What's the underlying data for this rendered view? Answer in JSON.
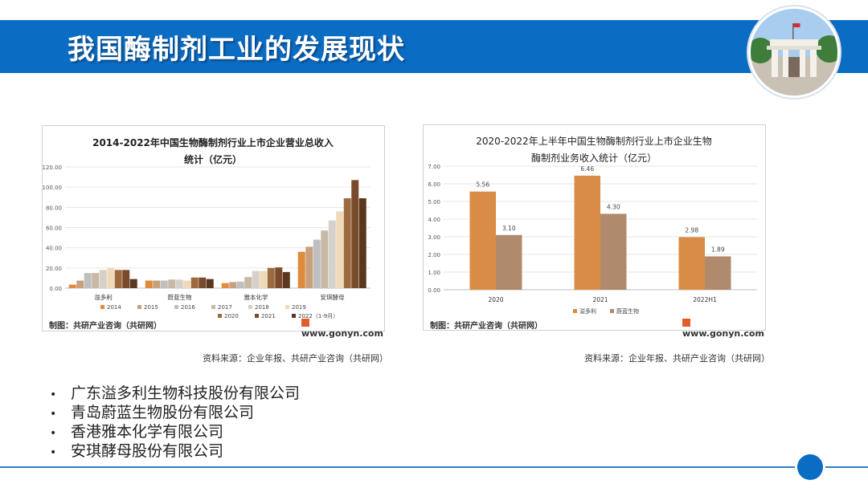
{
  "header": {
    "title": "我国酶制剂工业的发展现状"
  },
  "charts": {
    "left": {
      "footer_left": "制图：共研产业咨询（共研网）",
      "footer_right": "www.gonyn.com",
      "source": "资料来源：企业年报、共研产业咨询（共研网）"
    },
    "right": {
      "footer_left": "制图：共研产业咨询（共研网）",
      "footer_right": "www.gonyn.com",
      "source": "资料来源：企业年报、共研产业咨询（共研网）"
    }
  },
  "chart_data": [
    {
      "type": "bar",
      "title": [
        "2014-2022年中国生物酶制剂行业上市企业营业总收入",
        "统计（亿元）"
      ],
      "categories": [
        "溢多利",
        "蔚蓝生物",
        "雅本化学",
        "安琪酵母"
      ],
      "series": [
        {
          "name": "2014",
          "color": "#e08a3c",
          "values": [
            3.5,
            7.5,
            5.0,
            36
          ]
        },
        {
          "name": "2015",
          "color": "#c9a07c",
          "values": [
            7.5,
            7.5,
            6.0,
            41
          ]
        },
        {
          "name": "2016",
          "color": "#bfbfbf",
          "values": [
            15,
            7.5,
            6.5,
            48
          ]
        },
        {
          "name": "2017",
          "color": "#c8b8a6",
          "values": [
            15,
            8.5,
            11,
            57
          ]
        },
        {
          "name": "2018",
          "color": "#d6d1c8",
          "values": [
            18,
            8.5,
            17,
            67
          ]
        },
        {
          "name": "2019",
          "color": "#efd9b8",
          "values": [
            20,
            7.5,
            17,
            76
          ]
        },
        {
          "name": "2020",
          "color": "#9c6a3e",
          "values": [
            18,
            10.5,
            20,
            89
          ]
        },
        {
          "name": "2021",
          "color": "#7a4a2c",
          "values": [
            18,
            10.5,
            20.5,
            107
          ]
        },
        {
          "name": "2022（1-9月）",
          "color": "#5a3820",
          "values": [
            9,
            9,
            16,
            89
          ]
        }
      ],
      "yticks": [
        "0.00",
        "20.00",
        "40.00",
        "60.00",
        "80.00",
        "100.00",
        "120.00"
      ],
      "ylim": [
        0,
        120
      ]
    },
    {
      "type": "bar",
      "title": [
        "2020-2022年上半年中国生物酶制剂行业上市企业生物",
        "酶制剂业务收入统计（亿元）"
      ],
      "categories": [
        "2020",
        "2021",
        "2022H1"
      ],
      "series": [
        {
          "name": "溢多利",
          "color": "#d88c45",
          "values": [
            5.56,
            6.46,
            2.98
          ],
          "labels": [
            "5.56",
            "6.46",
            "2.98"
          ]
        },
        {
          "name": "蔚蓝生物",
          "color": "#b08a6c",
          "values": [
            3.1,
            4.3,
            1.89
          ],
          "labels": [
            "3.10",
            "4.30",
            "1.89"
          ]
        }
      ],
      "yticks": [
        "0.00",
        "1.00",
        "2.00",
        "3.00",
        "4.00",
        "5.00",
        "6.00",
        "7.00"
      ],
      "ylim": [
        0,
        7
      ]
    }
  ],
  "bullets": {
    "marker": "•",
    "items": [
      "广东溢多利生物科技股份有限公司",
      "青岛蔚蓝生物股份有限公司",
      "香港雅本化学有限公司",
      "安琪酵母股份有限公司"
    ]
  }
}
